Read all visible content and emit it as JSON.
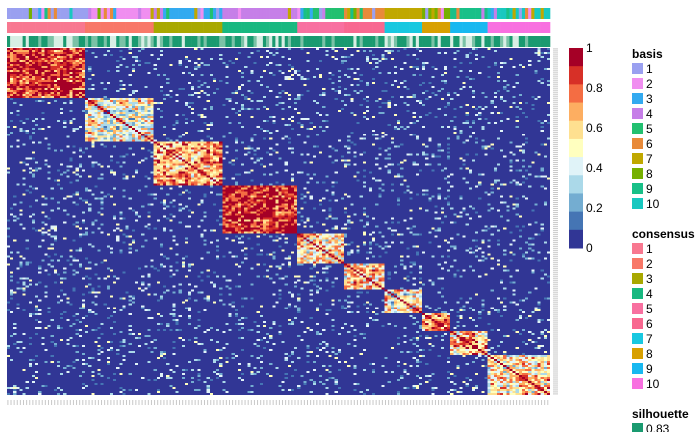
{
  "chart_data": {
    "type": "heatmap",
    "title": "",
    "matrix": {
      "description_of_values": "consensus matrix, samples ordered by cluster",
      "value_range": [
        0,
        1
      ],
      "blocks": [
        {
          "cluster": 1,
          "size": 25,
          "mean": 0.9
        },
        {
          "cluster": 2,
          "size": 22,
          "mean": 0.45
        },
        {
          "cluster": 3,
          "size": 22,
          "mean": 0.75
        },
        {
          "cluster": 4,
          "size": 24,
          "mean": 0.93
        },
        {
          "cluster": 5,
          "size": 15,
          "mean": 0.55
        },
        {
          "cluster": 6,
          "size": 13,
          "mean": 0.6
        },
        {
          "cluster": 7,
          "size": 12,
          "mean": 0.5
        },
        {
          "cluster": 8,
          "size": 9,
          "mean": 0.75
        },
        {
          "cluster": 9,
          "size": 12,
          "mean": 0.65
        },
        {
          "cluster": 10,
          "size": 20,
          "mean": 0.6
        }
      ]
    },
    "color_scale": {
      "ticks": [
        "1",
        "0.8",
        "0.6",
        "0.4",
        "0.2",
        "0"
      ],
      "colors": [
        "#a50026",
        "#d73027",
        "#f46d43",
        "#fdae61",
        "#fee090",
        "#ffffbf",
        "#e0f3f8",
        "#abd9e9",
        "#74add1",
        "#4575b4",
        "#313695"
      ]
    },
    "annotations": [
      {
        "name": "basis",
        "title": "basis",
        "levels": [
          "1",
          "2",
          "3",
          "4",
          "5",
          "6",
          "7",
          "8",
          "9",
          "10"
        ],
        "colors": [
          "#9aa0f0",
          "#f08ef0",
          "#33aaf0",
          "#c67fe8",
          "#22c070",
          "#e88a3a",
          "#c0a800",
          "#76b000",
          "#18c088",
          "#18c8c0"
        ]
      },
      {
        "name": "consensus",
        "title": "consensus",
        "levels": [
          "1",
          "2",
          "3",
          "4",
          "5",
          "6",
          "7",
          "8",
          "9",
          "10"
        ],
        "colors": [
          "#f87890",
          "#f87868",
          "#a8a800",
          "#18b880",
          "#f870a0",
          "#f86890",
          "#18c8e0",
          "#d8a000",
          "#18b8f0",
          "#f870e0"
        ]
      },
      {
        "name": "silhouette",
        "title": "silhouette",
        "levels": [
          "0.83"
        ],
        "colors": [
          "#1a9a70"
        ]
      }
    ]
  }
}
